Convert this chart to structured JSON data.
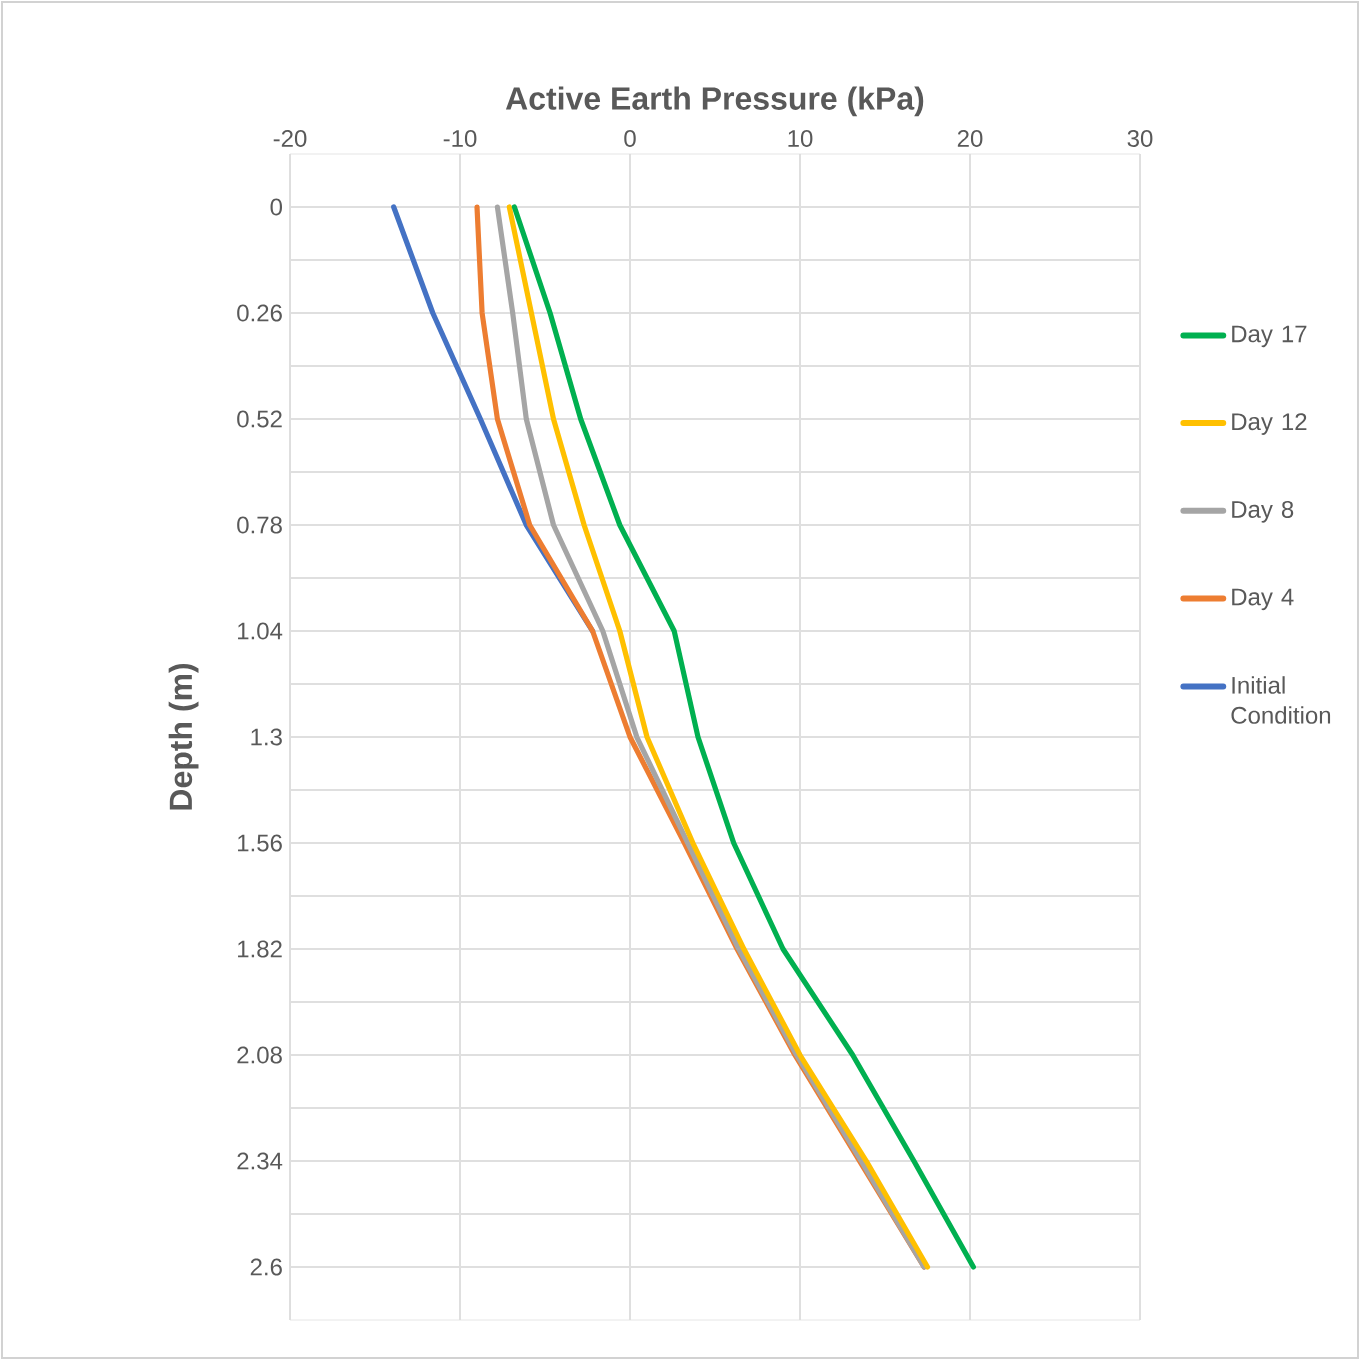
{
  "chart_data": {
    "type": "line",
    "xlabel": "Active Earth Pressure (kPa)",
    "ylabel": "Depth (m)",
    "xlim": [
      -20,
      30
    ],
    "xticks": [
      -20,
      -10,
      0,
      10,
      20,
      30
    ],
    "ylim": [
      2.73,
      -0.13
    ],
    "yticks": [
      0,
      {
        "value": 0.13,
        "label": null
      },
      0.26,
      {
        "value": 0.39,
        "label": null
      },
      0.52,
      {
        "value": 0.65,
        "label": null
      },
      0.78,
      {
        "value": 0.91,
        "label": null
      },
      1.04,
      {
        "value": 1.17,
        "label": null
      },
      1.3,
      {
        "value": 1.43,
        "label": null
      },
      1.56,
      {
        "value": 1.69,
        "label": null
      },
      1.82,
      {
        "value": 1.95,
        "label": null
      },
      2.08,
      {
        "value": 2.21,
        "label": null
      },
      2.34,
      {
        "value": 2.47,
        "label": null
      },
      2.6
    ],
    "grid": true,
    "legend": "right",
    "marker": "none",
    "line_style": "solid",
    "series": [
      {
        "name": "Day 17",
        "color": "#00b050",
        "x": [
          -6.8,
          -4.7,
          -2.9,
          -0.6,
          2.6,
          4.0,
          6.1,
          9.0,
          13.1,
          16.7,
          20.2
        ],
        "values": [
          0,
          0.26,
          0.52,
          0.78,
          1.04,
          1.3,
          1.56,
          1.82,
          2.08,
          2.34,
          2.6
        ]
      },
      {
        "name": "Day 12",
        "color": "#ffc000",
        "x": [
          -7.1,
          -5.8,
          -4.5,
          -2.7,
          -0.6,
          1.0,
          3.7,
          6.7,
          10.0,
          13.9,
          17.5
        ],
        "values": [
          0,
          0.26,
          0.52,
          0.78,
          1.04,
          1.3,
          1.56,
          1.82,
          2.08,
          2.34,
          2.6
        ]
      },
      {
        "name": "Day 8",
        "color": "#a5a5a5",
        "x": [
          -7.8,
          -6.9,
          -6.1,
          -4.5,
          -1.6,
          0.4,
          3.4,
          6.4,
          9.8,
          13.6,
          17.3
        ],
        "values": [
          0,
          0.26,
          0.52,
          0.78,
          1.04,
          1.3,
          1.56,
          1.82,
          2.08,
          2.34,
          2.6
        ]
      },
      {
        "name": "Day 4",
        "color": "#ed7d31",
        "x": [
          -9.0,
          -8.7,
          -7.8,
          -5.9,
          -2.2,
          0.0,
          3.2,
          6.3,
          9.7,
          13.5,
          17.3
        ],
        "values": [
          0,
          0.26,
          0.52,
          0.78,
          1.04,
          1.3,
          1.56,
          1.82,
          2.08,
          2.34,
          2.6
        ]
      },
      {
        "name": "Initial Condition",
        "color": "#4472c4",
        "x": [
          -13.9,
          -11.6,
          -8.8,
          -6.1,
          -2.2,
          null,
          null,
          null,
          null,
          null,
          null
        ],
        "values": [
          0,
          0.26,
          0.52,
          0.78,
          1.04,
          null,
          null,
          null,
          null,
          null,
          null
        ]
      }
    ]
  }
}
